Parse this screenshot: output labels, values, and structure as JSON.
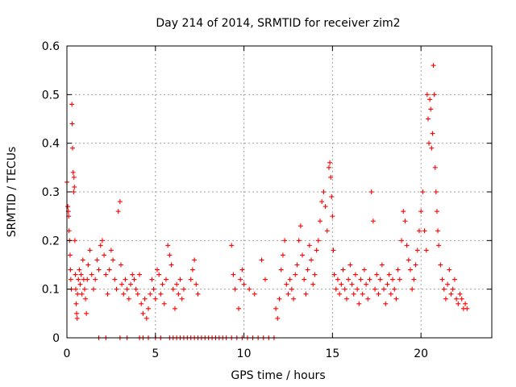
{
  "chart_data": {
    "type": "scatter",
    "title": "Day 214 of 2014, SRMTID for receiver zim2",
    "xlabel": "GPS time / hours",
    "ylabel": "SRMTID / TECUs",
    "xlim": [
      0,
      24
    ],
    "ylim": [
      0,
      0.6
    ],
    "x_ticks": [
      0,
      5,
      10,
      15,
      20
    ],
    "x_tick_labels": [
      "0",
      "5",
      "10",
      "15",
      "20"
    ],
    "y_ticks": [
      0,
      0.1,
      0.2,
      0.3,
      0.4,
      0.5,
      0.6
    ],
    "y_tick_labels": [
      "0",
      "0.1",
      "0.2",
      "0.3",
      "0.4",
      "0.5",
      "0.6"
    ],
    "grid": true,
    "marker": "+",
    "color": "#ff0000",
    "series": [
      {
        "name": "SRMTID",
        "points": [
          [
            0.0,
            0.32
          ],
          [
            0.05,
            0.27
          ],
          [
            0.08,
            0.26
          ],
          [
            0.1,
            0.25
          ],
          [
            0.12,
            0.22
          ],
          [
            0.15,
            0.2
          ],
          [
            0.18,
            0.17
          ],
          [
            0.2,
            0.14
          ],
          [
            0.22,
            0.12
          ],
          [
            0.25,
            0.1
          ],
          [
            0.28,
            0.48
          ],
          [
            0.3,
            0.44
          ],
          [
            0.32,
            0.39
          ],
          [
            0.35,
            0.34
          ],
          [
            0.38,
            0.3
          ],
          [
            0.4,
            0.33
          ],
          [
            0.42,
            0.31
          ],
          [
            0.45,
            0.2
          ],
          [
            0.48,
            0.13
          ],
          [
            0.5,
            0.1
          ],
          [
            0.52,
            0.07
          ],
          [
            0.55,
            0.05
          ],
          [
            0.58,
            0.04
          ],
          [
            0.6,
            0.09
          ],
          [
            0.65,
            0.12
          ],
          [
            0.7,
            0.14
          ],
          [
            0.75,
            0.11
          ],
          [
            0.8,
            0.13
          ],
          [
            0.85,
            0.09
          ],
          [
            0.9,
            0.16
          ],
          [
            0.95,
            0.12
          ],
          [
            1.0,
            0.1
          ],
          [
            1.05,
            0.08
          ],
          [
            1.1,
            0.05
          ],
          [
            1.15,
            0.12
          ],
          [
            1.2,
            0.15
          ],
          [
            1.3,
            0.18
          ],
          [
            1.4,
            0.13
          ],
          [
            1.5,
            0.1
          ],
          [
            1.6,
            0.12
          ],
          [
            1.7,
            0.16
          ],
          [
            1.8,
            0.14
          ],
          [
            1.9,
            0.19
          ],
          [
            2.0,
            0.2
          ],
          [
            2.1,
            0.17
          ],
          [
            2.2,
            0.13
          ],
          [
            2.3,
            0.09
          ],
          [
            2.4,
            0.14
          ],
          [
            2.5,
            0.18
          ],
          [
            2.6,
            0.16
          ],
          [
            2.7,
            0.12
          ],
          [
            2.8,
            0.1
          ],
          [
            2.9,
            0.26
          ],
          [
            3.0,
            0.28
          ],
          [
            3.05,
            0.15
          ],
          [
            3.1,
            0.11
          ],
          [
            3.2,
            0.09
          ],
          [
            3.3,
            0.12
          ],
          [
            3.4,
            0.1
          ],
          [
            3.5,
            0.08
          ],
          [
            3.6,
            0.11
          ],
          [
            3.7,
            0.13
          ],
          [
            3.8,
            0.12
          ],
          [
            3.9,
            0.1
          ],
          [
            4.0,
            0.09
          ],
          [
            4.1,
            0.13
          ],
          [
            4.2,
            0.07
          ],
          [
            4.3,
            0.05
          ],
          [
            4.4,
            0.08
          ],
          [
            4.5,
            0.04
          ],
          [
            4.6,
            0.06
          ],
          [
            4.7,
            0.09
          ],
          [
            4.8,
            0.12
          ],
          [
            4.9,
            0.1
          ],
          [
            5.0,
            0.08
          ],
          [
            5.1,
            0.14
          ],
          [
            5.2,
            0.13
          ],
          [
            5.3,
            0.09
          ],
          [
            5.4,
            0.11
          ],
          [
            5.5,
            0.07
          ],
          [
            5.6,
            0.12
          ],
          [
            5.7,
            0.19
          ],
          [
            5.8,
            0.17
          ],
          [
            5.9,
            0.15
          ],
          [
            6.0,
            0.1
          ],
          [
            6.1,
            0.06
          ],
          [
            6.2,
            0.11
          ],
          [
            6.3,
            0.09
          ],
          [
            6.4,
            0.12
          ],
          [
            6.5,
            0.08
          ],
          [
            6.6,
            0.1
          ],
          [
            7.0,
            0.12
          ],
          [
            7.1,
            0.14
          ],
          [
            7.2,
            0.16
          ],
          [
            7.3,
            0.11
          ],
          [
            7.4,
            0.09
          ],
          [
            9.3,
            0.19
          ],
          [
            9.4,
            0.13
          ],
          [
            9.5,
            0.1
          ],
          [
            9.7,
            0.06
          ],
          [
            9.8,
            0.12
          ],
          [
            9.9,
            0.14
          ],
          [
            10.0,
            0.11
          ],
          [
            10.3,
            0.1
          ],
          [
            10.6,
            0.09
          ],
          [
            11.0,
            0.16
          ],
          [
            11.2,
            0.12
          ],
          [
            11.8,
            0.06
          ],
          [
            11.9,
            0.04
          ],
          [
            12.0,
            0.08
          ],
          [
            12.1,
            0.14
          ],
          [
            12.2,
            0.17
          ],
          [
            12.3,
            0.2
          ],
          [
            12.4,
            0.11
          ],
          [
            12.5,
            0.09
          ],
          [
            12.6,
            0.12
          ],
          [
            12.7,
            0.1
          ],
          [
            12.8,
            0.08
          ],
          [
            12.9,
            0.13
          ],
          [
            13.0,
            0.15
          ],
          [
            13.1,
            0.2
          ],
          [
            13.2,
            0.23
          ],
          [
            13.3,
            0.17
          ],
          [
            13.4,
            0.12
          ],
          [
            13.5,
            0.09
          ],
          [
            13.6,
            0.14
          ],
          [
            13.7,
            0.19
          ],
          [
            13.8,
            0.16
          ],
          [
            13.9,
            0.11
          ],
          [
            14.0,
            0.13
          ],
          [
            14.1,
            0.18
          ],
          [
            14.2,
            0.2
          ],
          [
            14.3,
            0.24
          ],
          [
            14.4,
            0.28
          ],
          [
            14.5,
            0.3
          ],
          [
            14.6,
            0.27
          ],
          [
            14.7,
            0.22
          ],
          [
            14.8,
            0.35
          ],
          [
            14.85,
            0.36
          ],
          [
            14.9,
            0.33
          ],
          [
            14.95,
            0.29
          ],
          [
            15.0,
            0.25
          ],
          [
            15.05,
            0.18
          ],
          [
            15.1,
            0.13
          ],
          [
            15.2,
            0.1
          ],
          [
            15.3,
            0.12
          ],
          [
            15.4,
            0.09
          ],
          [
            15.5,
            0.11
          ],
          [
            15.6,
            0.14
          ],
          [
            15.7,
            0.1
          ],
          [
            15.8,
            0.08
          ],
          [
            15.9,
            0.12
          ],
          [
            16.0,
            0.15
          ],
          [
            16.1,
            0.11
          ],
          [
            16.2,
            0.09
          ],
          [
            16.3,
            0.13
          ],
          [
            16.4,
            0.1
          ],
          [
            16.5,
            0.07
          ],
          [
            16.6,
            0.12
          ],
          [
            16.7,
            0.09
          ],
          [
            16.8,
            0.14
          ],
          [
            16.9,
            0.11
          ],
          [
            17.0,
            0.08
          ],
          [
            17.1,
            0.12
          ],
          [
            17.2,
            0.3
          ],
          [
            17.3,
            0.24
          ],
          [
            17.4,
            0.1
          ],
          [
            17.5,
            0.13
          ],
          [
            17.6,
            0.09
          ],
          [
            17.7,
            0.12
          ],
          [
            17.8,
            0.15
          ],
          [
            17.9,
            0.1
          ],
          [
            18.0,
            0.07
          ],
          [
            18.1,
            0.11
          ],
          [
            18.2,
            0.13
          ],
          [
            18.3,
            0.09
          ],
          [
            18.4,
            0.12
          ],
          [
            18.5,
            0.1
          ],
          [
            18.6,
            0.08
          ],
          [
            18.7,
            0.14
          ],
          [
            18.8,
            0.12
          ],
          [
            18.9,
            0.2
          ],
          [
            19.0,
            0.26
          ],
          [
            19.1,
            0.24
          ],
          [
            19.2,
            0.19
          ],
          [
            19.3,
            0.16
          ],
          [
            19.4,
            0.14
          ],
          [
            19.5,
            0.1
          ],
          [
            19.6,
            0.12
          ],
          [
            19.7,
            0.15
          ],
          [
            19.8,
            0.18
          ],
          [
            19.9,
            0.22
          ],
          [
            20.0,
            0.26
          ],
          [
            20.1,
            0.3
          ],
          [
            20.2,
            0.22
          ],
          [
            20.3,
            0.18
          ],
          [
            20.35,
            0.5
          ],
          [
            20.4,
            0.45
          ],
          [
            20.45,
            0.4
          ],
          [
            20.5,
            0.49
          ],
          [
            20.55,
            0.47
          ],
          [
            20.6,
            0.39
          ],
          [
            20.65,
            0.42
          ],
          [
            20.7,
            0.56
          ],
          [
            20.75,
            0.5
          ],
          [
            20.8,
            0.35
          ],
          [
            20.85,
            0.3
          ],
          [
            20.9,
            0.26
          ],
          [
            20.95,
            0.22
          ],
          [
            21.0,
            0.19
          ],
          [
            21.1,
            0.15
          ],
          [
            21.2,
            0.12
          ],
          [
            21.3,
            0.1
          ],
          [
            21.4,
            0.08
          ],
          [
            21.5,
            0.11
          ],
          [
            21.6,
            0.14
          ],
          [
            21.7,
            0.09
          ],
          [
            21.8,
            0.1
          ],
          [
            21.9,
            0.12
          ],
          [
            22.0,
            0.08
          ],
          [
            22.1,
            0.07
          ],
          [
            22.2,
            0.09
          ],
          [
            22.3,
            0.08
          ],
          [
            22.4,
            0.06
          ],
          [
            22.5,
            0.07
          ],
          [
            22.6,
            0.06
          ],
          [
            1.8,
            0.0
          ],
          [
            2.2,
            0.0
          ],
          [
            3.0,
            0.0
          ],
          [
            3.4,
            0.0
          ],
          [
            4.1,
            0.0
          ],
          [
            4.3,
            0.0
          ],
          [
            4.6,
            0.0
          ],
          [
            5.0,
            0.0
          ],
          [
            5.3,
            0.0
          ],
          [
            5.8,
            0.0
          ],
          [
            6.0,
            0.0
          ],
          [
            6.2,
            0.0
          ],
          [
            6.4,
            0.0
          ],
          [
            6.6,
            0.0
          ],
          [
            6.8,
            0.0
          ],
          [
            7.0,
            0.0
          ],
          [
            7.2,
            0.0
          ],
          [
            7.4,
            0.0
          ],
          [
            7.6,
            0.0
          ],
          [
            7.8,
            0.0
          ],
          [
            8.0,
            0.0
          ],
          [
            8.2,
            0.0
          ],
          [
            8.4,
            0.0
          ],
          [
            8.6,
            0.0
          ],
          [
            8.8,
            0.0
          ],
          [
            9.0,
            0.0
          ],
          [
            9.3,
            0.0
          ],
          [
            9.6,
            0.0
          ],
          [
            9.9,
            0.0
          ],
          [
            10.2,
            0.0
          ],
          [
            10.5,
            0.0
          ],
          [
            10.8,
            0.0
          ],
          [
            11.1,
            0.0
          ],
          [
            11.4,
            0.0
          ],
          [
            11.7,
            0.0
          ]
        ]
      }
    ]
  }
}
